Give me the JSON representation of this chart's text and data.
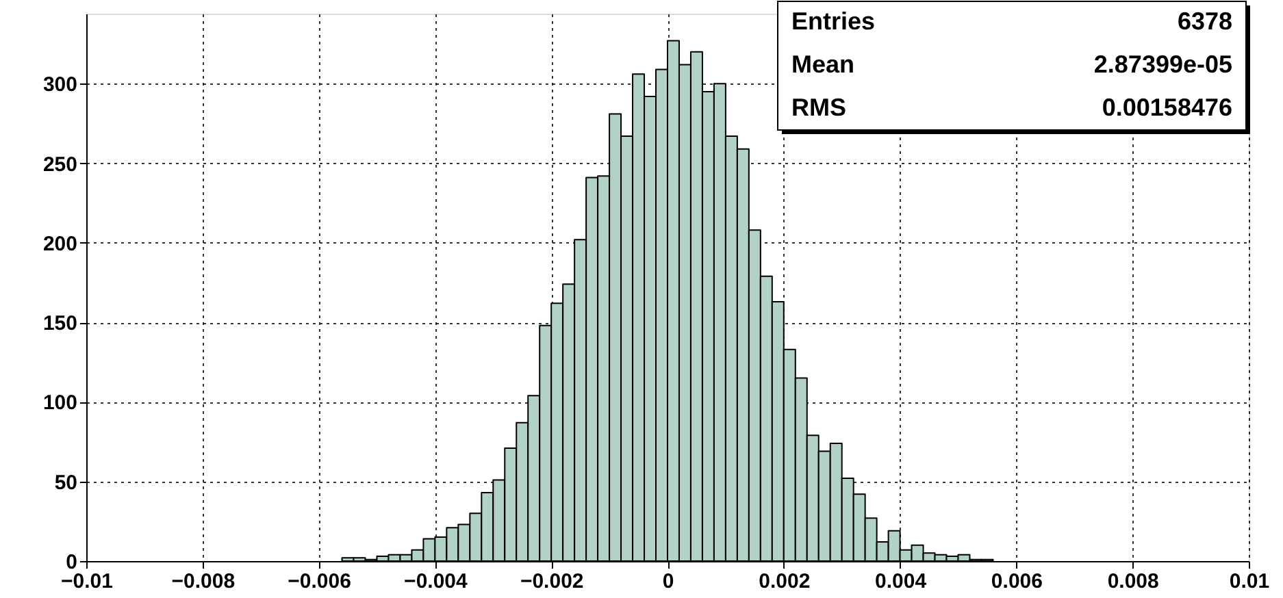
{
  "chart_data": {
    "type": "histogram",
    "color": "#b2d1c8",
    "bins": [
      -0.01,
      -0.0098,
      -0.0096,
      -0.0094,
      -0.0092,
      -0.009,
      -0.0088,
      -0.0086,
      -0.0084,
      -0.0082,
      -0.008,
      -0.0078,
      -0.0076,
      -0.0074,
      -0.0072,
      -0.007,
      -0.0068,
      -0.0066,
      -0.0064,
      -0.0062,
      -0.006,
      -0.0058,
      -0.0056,
      -0.0054,
      -0.0052,
      -0.005,
      -0.0048,
      -0.0046,
      -0.0044,
      -0.0042,
      -0.004,
      -0.0038,
      -0.0036,
      -0.0034,
      -0.0032,
      -0.003,
      -0.0028,
      -0.0026,
      -0.0024,
      -0.0022,
      -0.002,
      -0.0018,
      -0.0016,
      -0.0014,
      -0.0012,
      -0.001,
      -0.0008,
      -0.0006,
      -0.0004,
      -0.0002,
      0,
      0.0002,
      0.0004,
      0.0006,
      0.0008,
      0.001,
      0.0012,
      0.0014,
      0.0016,
      0.0018,
      0.002,
      0.0022,
      0.0024,
      0.0026,
      0.0028,
      0.003,
      0.0032,
      0.0034,
      0.0036,
      0.0038,
      0.004,
      0.0042,
      0.0044,
      0.0046,
      0.0048,
      0.005,
      0.0052,
      0.0054,
      0.0056,
      0.0058,
      0.006,
      0.0062,
      0.0064,
      0.0066,
      0.0068,
      0.007,
      0.0072,
      0.0074,
      0.0076,
      0.0078,
      0.008,
      0.0082,
      0.0084,
      0.0086,
      0.0088,
      0.009,
      0.0092,
      0.0094,
      0.0096,
      0.0098,
      0.01
    ],
    "values": [
      0,
      0,
      0,
      0,
      0,
      0,
      0,
      0,
      0,
      0,
      0,
      0,
      0,
      0,
      0,
      0,
      0,
      0,
      0,
      0,
      0,
      0,
      2,
      2,
      1,
      3,
      4,
      4,
      7,
      14,
      15,
      21,
      23,
      30,
      43,
      51,
      71,
      87,
      104,
      148,
      162,
      174,
      202,
      241,
      242,
      281,
      267,
      306,
      292,
      309,
      327,
      312,
      320,
      295,
      300,
      267,
      259,
      208,
      179,
      163,
      133,
      115,
      79,
      69,
      74,
      52,
      42,
      27,
      12,
      19,
      7,
      10,
      5,
      4,
      3,
      4,
      1,
      1,
      0,
      0,
      0,
      0,
      0,
      0,
      0,
      0,
      0,
      0,
      0,
      0,
      0,
      0,
      0,
      0,
      0,
      0,
      0,
      0,
      0,
      0
    ],
    "xlim": [
      -0.01,
      0.01
    ],
    "xticks": [
      -0.01,
      -0.008,
      -0.006,
      -0.004,
      -0.002,
      0,
      0.002,
      0.004,
      0.006,
      0.008,
      0.01
    ],
    "ylim": [
      0,
      344
    ],
    "yticks": [
      0,
      50,
      100,
      150,
      200,
      250,
      300
    ],
    "grid": true,
    "line_style": "solid",
    "annotations": [
      "Entries",
      "6378",
      "Mean",
      "2.87399e-05",
      "RMS",
      "0.00158476"
    ]
  }
}
